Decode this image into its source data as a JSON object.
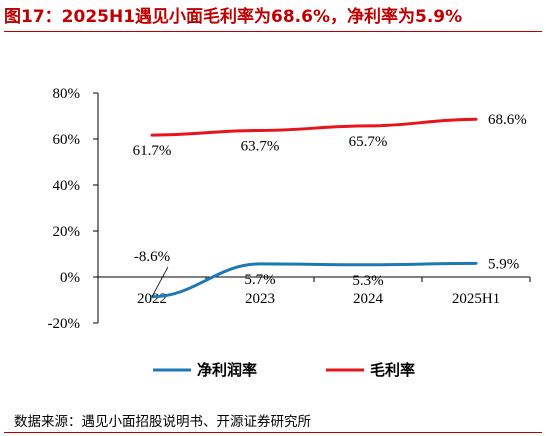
{
  "header": {
    "title": "图17：2025H1遇见小面毛利率为68.6%，净利率为5.9%"
  },
  "source": "数据来源：遇见小面招股说明书、开源证券研究所",
  "chart_data": {
    "type": "line",
    "title": "",
    "xlabel": "",
    "ylabel": "",
    "categories": [
      "2022",
      "2023",
      "2024",
      "2025H1"
    ],
    "ylim": [
      -20,
      80
    ],
    "y_ticks": [
      -20,
      0,
      20,
      40,
      60,
      80
    ],
    "y_tick_labels": [
      "-20%",
      "0%",
      "20%",
      "40%",
      "60%",
      "80%"
    ],
    "grid": false,
    "legend_position": "bottom",
    "series": [
      {
        "name": "净利润率",
        "color": "#1f77b4",
        "values": [
          -8.6,
          5.7,
          5.3,
          5.9
        ],
        "labels": [
          "-8.6%",
          "5.7%",
          "5.3%",
          "5.9%"
        ]
      },
      {
        "name": "毛利率",
        "color": "#e8141c",
        "values": [
          61.7,
          63.7,
          65.7,
          68.6
        ],
        "labels": [
          "61.7%",
          "63.7%",
          "65.7%",
          "68.6%"
        ]
      }
    ]
  }
}
